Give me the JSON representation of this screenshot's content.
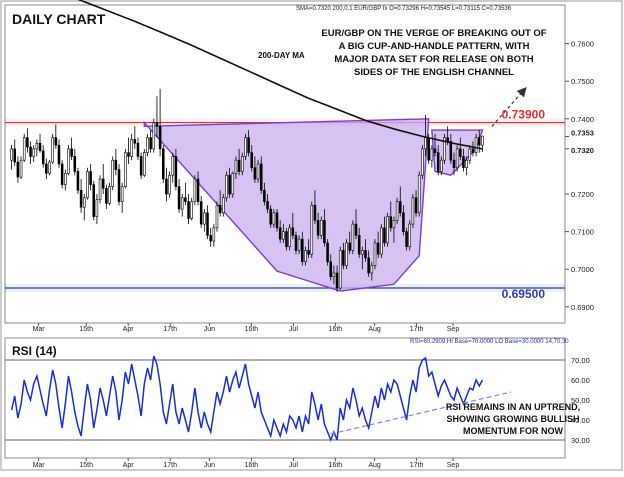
{
  "chart_data": [
    {
      "type": "candlestick",
      "title": "DAILY CHART",
      "info": "SMA=0.7320   200,0,1   EUR/GBP fx O=0.73296 H=0.73545 L=0.73115 C=0.73536",
      "annotation": "EUR/GBP ON THE VERGE OF BREAKING OUT OF|A BIG CUP-AND-HANDLE PATTERN, WITH|MAJOR DATA SET FOR RELEASE ON BOTH|SIDES OF THE ENGLISH CHANNEL",
      "ma_label": "200-DAY MA",
      "ylim": [
        0.6865,
        0.77
      ],
      "y_ticks": [
        "0.7600",
        "0.7500",
        "0.7400",
        "0.7353",
        "0.7320",
        "0.7200",
        "0.7100",
        "0.7000",
        "0.6900"
      ],
      "x_ticks": [
        "Mar",
        "15th",
        "Apr",
        "17th",
        "Jun",
        "16th",
        "Jul",
        "16th",
        "Aug",
        "17th",
        "Sep"
      ],
      "levels": [
        {
          "label": "0.73900",
          "value": 0.739,
          "color": "#e03030"
        },
        {
          "label": "0.69500",
          "value": 0.695,
          "color": "#2a3fa8"
        }
      ],
      "candles": [
        [
          0.729,
          0.733,
          0.7265,
          0.732
        ],
        [
          0.732,
          0.7345,
          0.7275,
          0.7285
        ],
        [
          0.7285,
          0.73,
          0.723,
          0.7245
        ],
        [
          0.7245,
          0.73,
          0.724,
          0.729
        ],
        [
          0.729,
          0.736,
          0.7285,
          0.735
        ],
        [
          0.735,
          0.7375,
          0.731,
          0.7325
        ],
        [
          0.7325,
          0.734,
          0.728,
          0.73
        ],
        [
          0.73,
          0.733,
          0.7285,
          0.732
        ],
        [
          0.732,
          0.7345,
          0.73,
          0.7335
        ],
        [
          0.7335,
          0.736,
          0.731,
          0.7315
        ],
        [
          0.7315,
          0.733,
          0.727,
          0.728
        ],
        [
          0.728,
          0.7295,
          0.724,
          0.7255
        ],
        [
          0.7255,
          0.729,
          0.725,
          0.7285
        ],
        [
          0.7285,
          0.736,
          0.728,
          0.735
        ],
        [
          0.735,
          0.7385,
          0.732,
          0.733
        ],
        [
          0.733,
          0.7345,
          0.727,
          0.728
        ],
        [
          0.728,
          0.729,
          0.7215,
          0.7225
        ],
        [
          0.7225,
          0.7265,
          0.721,
          0.7255
        ],
        [
          0.7255,
          0.733,
          0.725,
          0.732
        ],
        [
          0.732,
          0.735,
          0.729,
          0.73
        ],
        [
          0.73,
          0.732,
          0.725,
          0.726
        ],
        [
          0.726,
          0.727,
          0.72,
          0.721
        ],
        [
          0.721,
          0.724,
          0.715,
          0.7165
        ],
        [
          0.7165,
          0.72,
          0.713,
          0.719
        ],
        [
          0.719,
          0.727,
          0.7185,
          0.726
        ],
        [
          0.726,
          0.728,
          0.721,
          0.7225
        ],
        [
          0.7225,
          0.7235,
          0.713,
          0.714
        ],
        [
          0.714,
          0.72,
          0.712,
          0.7185
        ],
        [
          0.7185,
          0.725,
          0.7175,
          0.724
        ],
        [
          0.724,
          0.728,
          0.72,
          0.7215
        ],
        [
          0.7215,
          0.7225,
          0.716,
          0.7175
        ],
        [
          0.7175,
          0.723,
          0.717,
          0.722
        ],
        [
          0.722,
          0.73,
          0.721,
          0.729
        ],
        [
          0.729,
          0.732,
          0.725,
          0.7265
        ],
        [
          0.7265,
          0.728,
          0.717,
          0.718
        ],
        [
          0.718,
          0.723,
          0.715,
          0.722
        ],
        [
          0.722,
          0.732,
          0.7215,
          0.731
        ],
        [
          0.731,
          0.735,
          0.728,
          0.73
        ],
        [
          0.73,
          0.736,
          0.729,
          0.7345
        ],
        [
          0.7345,
          0.738,
          0.732,
          0.7335
        ],
        [
          0.7335,
          0.735,
          0.729,
          0.73
        ],
        [
          0.73,
          0.731,
          0.724,
          0.725
        ],
        [
          0.725,
          0.732,
          0.7245,
          0.731
        ],
        [
          0.731,
          0.736,
          0.73,
          0.735
        ],
        [
          0.735,
          0.737,
          0.731,
          0.732
        ],
        [
          0.732,
          0.74,
          0.731,
          0.739
        ],
        [
          0.739,
          0.746,
          0.735,
          0.738
        ],
        [
          0.738,
          0.748,
          0.73,
          0.732
        ],
        [
          0.732,
          0.733,
          0.723,
          0.724
        ],
        [
          0.724,
          0.727,
          0.718,
          0.72
        ],
        [
          0.72,
          0.726,
          0.719,
          0.725
        ],
        [
          0.725,
          0.731,
          0.723,
          0.73
        ],
        [
          0.73,
          0.732,
          0.721,
          0.722
        ],
        [
          0.722,
          0.724,
          0.715,
          0.716
        ],
        [
          0.716,
          0.72,
          0.714,
          0.719
        ],
        [
          0.719,
          0.723,
          0.717,
          0.718
        ],
        [
          0.718,
          0.72,
          0.712,
          0.7135
        ],
        [
          0.7135,
          0.719,
          0.713,
          0.718
        ],
        [
          0.718,
          0.725,
          0.717,
          0.724
        ],
        [
          0.724,
          0.726,
          0.717,
          0.718
        ],
        [
          0.718,
          0.7195,
          0.711,
          0.712
        ],
        [
          0.712,
          0.716,
          0.71,
          0.715
        ],
        [
          0.715,
          0.717,
          0.708,
          0.709
        ],
        [
          0.709,
          0.711,
          0.706,
          0.7075
        ],
        [
          0.7075,
          0.712,
          0.706,
          0.711
        ],
        [
          0.711,
          0.718,
          0.71,
          0.717
        ],
        [
          0.717,
          0.721,
          0.714,
          0.715
        ],
        [
          0.715,
          0.72,
          0.714,
          0.719
        ],
        [
          0.719,
          0.726,
          0.718,
          0.725
        ],
        [
          0.725,
          0.727,
          0.719,
          0.72
        ],
        [
          0.72,
          0.726,
          0.719,
          0.7255
        ],
        [
          0.7255,
          0.73,
          0.724,
          0.729
        ],
        [
          0.729,
          0.732,
          0.725,
          0.726
        ],
        [
          0.726,
          0.731,
          0.725,
          0.73
        ],
        [
          0.73,
          0.736,
          0.729,
          0.735
        ],
        [
          0.735,
          0.737,
          0.73,
          0.731
        ],
        [
          0.731,
          0.733,
          0.726,
          0.727
        ],
        [
          0.727,
          0.73,
          0.723,
          0.724
        ],
        [
          0.724,
          0.729,
          0.723,
          0.728
        ],
        [
          0.728,
          0.73,
          0.72,
          0.721
        ],
        [
          0.721,
          0.723,
          0.717,
          0.718
        ],
        [
          0.718,
          0.72,
          0.715,
          0.716
        ],
        [
          0.716,
          0.717,
          0.711,
          0.712
        ],
        [
          0.712,
          0.716,
          0.711,
          0.715
        ],
        [
          0.715,
          0.716,
          0.71,
          0.711
        ],
        [
          0.711,
          0.713,
          0.707,
          0.708
        ],
        [
          0.708,
          0.712,
          0.707,
          0.71
        ],
        [
          0.71,
          0.711,
          0.705,
          0.706
        ],
        [
          0.706,
          0.712,
          0.705,
          0.711
        ],
        [
          0.711,
          0.715,
          0.708,
          0.709
        ],
        [
          0.709,
          0.71,
          0.704,
          0.705
        ],
        [
          0.705,
          0.709,
          0.704,
          0.708
        ],
        [
          0.708,
          0.71,
          0.701,
          0.702
        ],
        [
          0.702,
          0.706,
          0.701,
          0.705
        ],
        [
          0.705,
          0.708,
          0.703,
          0.704
        ],
        [
          0.704,
          0.718,
          0.703,
          0.717
        ],
        [
          0.717,
          0.721,
          0.712,
          0.713
        ],
        [
          0.713,
          0.715,
          0.708,
          0.709
        ],
        [
          0.709,
          0.714,
          0.708,
          0.713
        ],
        [
          0.713,
          0.716,
          0.706,
          0.707
        ],
        [
          0.707,
          0.708,
          0.701,
          0.702
        ],
        [
          0.702,
          0.704,
          0.697,
          0.698
        ],
        [
          0.698,
          0.701,
          0.696,
          0.699
        ],
        [
          0.699,
          0.701,
          0.694,
          0.695
        ],
        [
          0.695,
          0.706,
          0.6945,
          0.705
        ],
        [
          0.705,
          0.707,
          0.7,
          0.701
        ],
        [
          0.701,
          0.708,
          0.7,
          0.707
        ],
        [
          0.707,
          0.71,
          0.704,
          0.705
        ],
        [
          0.705,
          0.713,
          0.704,
          0.712
        ],
        [
          0.712,
          0.716,
          0.708,
          0.709
        ],
        [
          0.709,
          0.711,
          0.703,
          0.704
        ],
        [
          0.704,
          0.706,
          0.7,
          0.705
        ],
        [
          0.705,
          0.708,
          0.702,
          0.703
        ],
        [
          0.703,
          0.705,
          0.698,
          0.699
        ],
        [
          0.699,
          0.702,
          0.697,
          0.701
        ],
        [
          0.701,
          0.708,
          0.7,
          0.707
        ],
        [
          0.707,
          0.71,
          0.703,
          0.704
        ],
        [
          0.704,
          0.712,
          0.703,
          0.711
        ],
        [
          0.711,
          0.714,
          0.706,
          0.707
        ],
        [
          0.707,
          0.715,
          0.706,
          0.714
        ],
        [
          0.714,
          0.718,
          0.71,
          0.711
        ],
        [
          0.711,
          0.714,
          0.707,
          0.713
        ],
        [
          0.713,
          0.719,
          0.712,
          0.718
        ],
        [
          0.718,
          0.722,
          0.714,
          0.715
        ],
        [
          0.715,
          0.717,
          0.709,
          0.71
        ],
        [
          0.71,
          0.711,
          0.705,
          0.706
        ],
        [
          0.706,
          0.713,
          0.705,
          0.712
        ],
        [
          0.712,
          0.72,
          0.711,
          0.719
        ],
        [
          0.719,
          0.721,
          0.714,
          0.715
        ],
        [
          0.715,
          0.726,
          0.714,
          0.725
        ],
        [
          0.725,
          0.733,
          0.724,
          0.732
        ],
        [
          0.732,
          0.741,
          0.73,
          0.735
        ],
        [
          0.735,
          0.736,
          0.728,
          0.729
        ],
        [
          0.729,
          0.733,
          0.727,
          0.732
        ],
        [
          0.732,
          0.736,
          0.73,
          0.731
        ],
        [
          0.731,
          0.733,
          0.725,
          0.726
        ],
        [
          0.726,
          0.73,
          0.725,
          0.729
        ],
        [
          0.729,
          0.736,
          0.728,
          0.735
        ],
        [
          0.735,
          0.738,
          0.733,
          0.734
        ],
        [
          0.734,
          0.736,
          0.728,
          0.729
        ],
        [
          0.729,
          0.731,
          0.725,
          0.727
        ],
        [
          0.727,
          0.733,
          0.726,
          0.732
        ],
        [
          0.732,
          0.735,
          0.729,
          0.73
        ],
        [
          0.73,
          0.732,
          0.726,
          0.727
        ],
        [
          0.727,
          0.73,
          0.725,
          0.729
        ],
        [
          0.729,
          0.733,
          0.728,
          0.732
        ],
        [
          0.732,
          0.734,
          0.73,
          0.731
        ],
        [
          0.731,
          0.736,
          0.73,
          0.735
        ],
        [
          0.735,
          0.737,
          0.731,
          0.733
        ],
        [
          0.733,
          0.7355,
          0.7312,
          0.7354
        ]
      ],
      "sma200": [
        0.777,
        0.775,
        0.772,
        0.769,
        0.766,
        0.7628,
        0.7595,
        0.756,
        0.7525,
        0.749,
        0.7455,
        0.7425,
        0.7395,
        0.7372,
        0.7352,
        0.7335,
        0.732
      ],
      "cup": [
        [
          0.739,
          0.738
        ],
        [
          0.6995,
          0.7
        ],
        [
          0.6942,
          0.696
        ],
        [
          0.7036,
          0.74
        ]
      ],
      "handle": [
        [
          0.737,
          0.737
        ],
        [
          0.725,
          0.732
        ]
      ],
      "breakout_arrow": [
        0.738,
        0.7475
      ],
      "sub_panel": {
        "title": "RSI (14)",
        "info": "RSI=60.2909 HI Base=70.0000 LO Base=30.0000  14,70,30",
        "annotation": "RSI REMAINS IN AN UPTREND,|SHOWING GROWING BULLISH|MOMENTUM FOR NOW",
        "ylim": [
          22,
          80
        ],
        "y_ticks": [
          "70.00",
          "60.00",
          "50.00",
          "40.00",
          "30.00"
        ],
        "hi_base": 70,
        "lo_base": 30,
        "values": [
          45,
          52,
          41,
          48,
          60,
          54,
          50,
          58,
          62,
          55,
          48,
          42,
          55,
          65,
          58,
          46,
          36,
          48,
          62,
          54,
          44,
          37,
          32,
          46,
          58,
          50,
          36,
          45,
          56,
          50,
          42,
          52,
          62,
          54,
          40,
          50,
          64,
          58,
          68,
          60,
          52,
          42,
          58,
          66,
          60,
          72,
          68,
          58,
          44,
          38,
          48,
          58,
          44,
          38,
          46,
          40,
          34,
          44,
          56,
          44,
          36,
          44,
          38,
          34,
          44,
          54,
          48,
          54,
          62,
          54,
          60,
          64,
          56,
          62,
          68,
          58,
          52,
          46,
          54,
          44,
          40,
          36,
          32,
          40,
          36,
          32,
          38,
          34,
          42,
          40,
          36,
          42,
          34,
          42,
          38,
          54,
          48,
          40,
          48,
          38,
          34,
          30,
          34,
          30,
          46,
          40,
          50,
          46,
          56,
          50,
          42,
          46,
          40,
          36,
          44,
          52,
          46,
          56,
          50,
          58,
          54,
          60,
          58,
          52,
          46,
          40,
          52,
          60,
          54,
          66,
          70,
          71,
          62,
          64,
          58,
          52,
          57,
          60,
          56,
          52,
          50,
          56,
          52,
          48,
          52,
          56,
          55,
          60,
          57,
          60
        ],
        "trendline": [
          [
            33,
            64
          ],
          [
            56,
            74
          ]
        ]
      }
    }
  ]
}
